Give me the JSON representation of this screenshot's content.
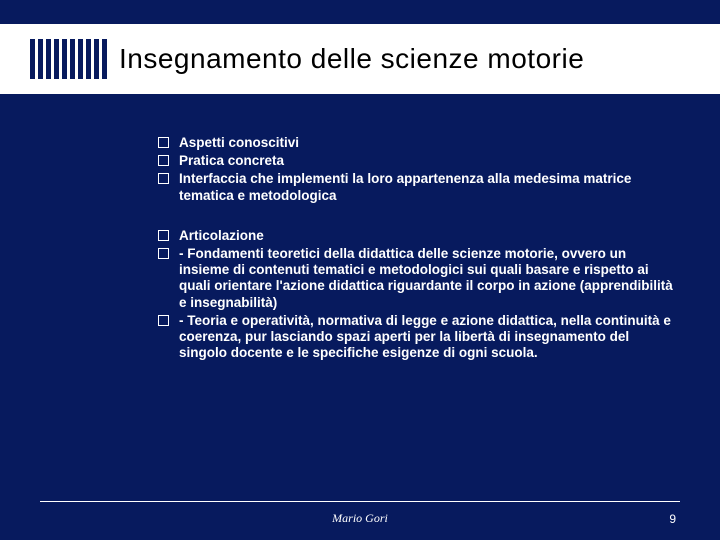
{
  "title": "Insegnamento delle scienze motorie",
  "group1": [
    {
      "text": "Aspetti conoscitivi",
      "bold": true
    },
    {
      "text": "Pratica concreta",
      "bold": true
    },
    {
      "text": "Interfaccia che implementi la loro appartenenza alla medesima matrice tematica e metodologica",
      "bold": true
    }
  ],
  "group2": [
    {
      "text": "Articolazione",
      "bold": true
    },
    {
      "text": "- Fondamenti teoretici della didattica delle scienze motorie, ovvero un insieme di contenuti tematici e metodologici sui quali basare e rispetto ai quali orientare l'azione didattica riguardante il corpo in azione (apprendibilità e insegnabilità)",
      "bold": true
    },
    {
      "text": "- Teoria e operatività, normativa di legge e azione didattica, nella continuità e coerenza, pur lasciando spazi aperti per la libertà di insegnamento del singolo docente e le specifiche esigenze di ogni scuola.",
      "bold": true
    }
  ],
  "footer": {
    "author": "Mario Gori",
    "page": "9"
  },
  "colors": {
    "background": "#071a5e",
    "title_bg": "#ffffff",
    "text": "#ffffff"
  }
}
